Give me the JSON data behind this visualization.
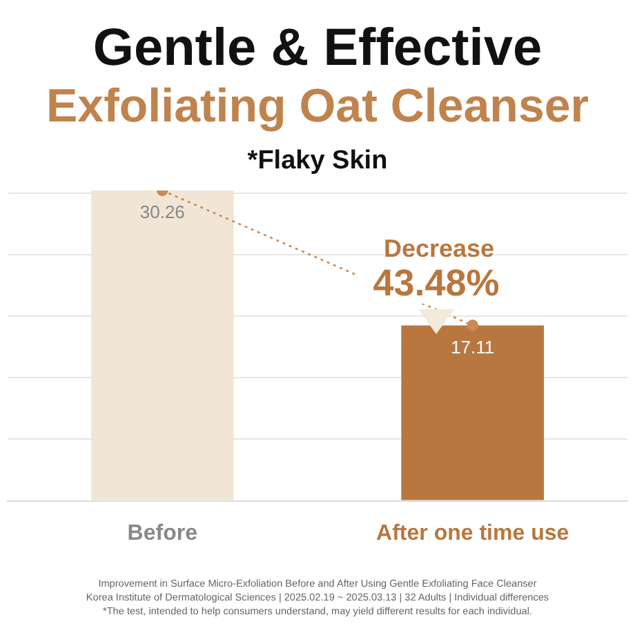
{
  "chart_data": {
    "type": "bar",
    "title": "Gentle & Effective",
    "subtitle": "Exfoliating Oat Cleanser",
    "annotations": [
      "*Flaky Skin",
      "Decrease",
      "43.48%",
      "Improvement in Surface Micro-Exfoliation Before and After Using Gentle Exfoliating Face Cleanser",
      "Korea Institute of Dermatological Sciences | 2025.02.19 ~ 2025.03.13 | 32 Adults | Individual differences",
      "*The test, intended to help consumers understand, may yield different results for each individual."
    ],
    "categories": [
      "Before",
      "After one time use"
    ],
    "series": [
      {
        "colors": [
          "#f1e6d6",
          "#b8773f"
        ],
        "values": [
          30.26,
          17.11
        ],
        "value_labels": [
          "30.26",
          "17.11"
        ]
      },
      {
        "type": "line",
        "color": "#c98a55",
        "line_style": "dotted",
        "marker": "circle",
        "values": [
          30.26,
          17.11
        ]
      }
    ],
    "yticks": [
      {
        "value": 0,
        "label": null
      },
      {
        "value": 6,
        "label": null
      },
      {
        "value": 12,
        "label": null
      },
      {
        "value": 18,
        "label": null
      },
      {
        "value": 24,
        "label": null
      },
      {
        "value": 30,
        "label": null
      }
    ],
    "grid": "y",
    "tick_labels": "x",
    "legend": false
  }
}
